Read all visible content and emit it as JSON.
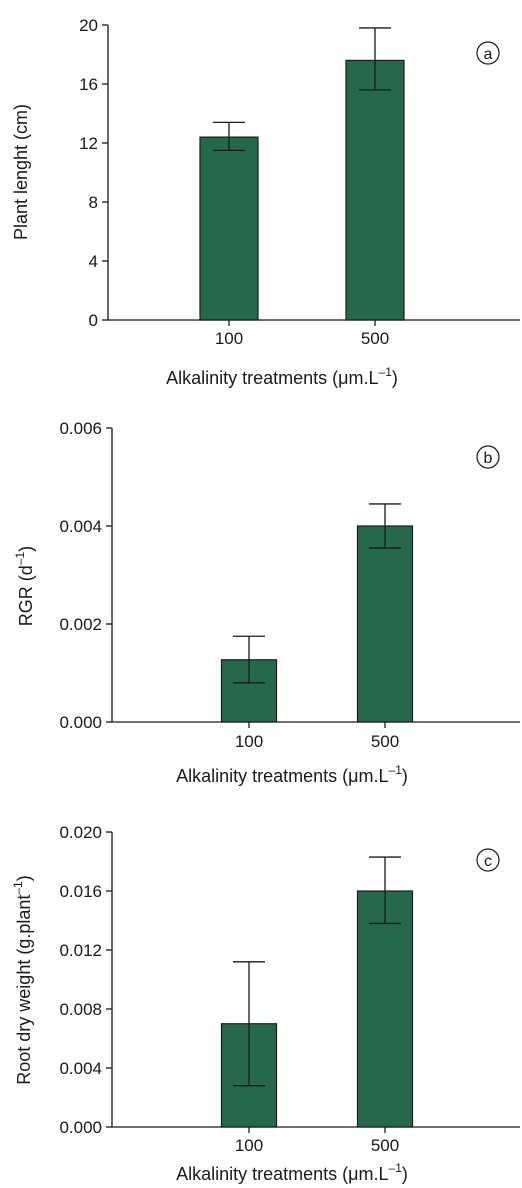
{
  "colors": {
    "bar": "#25694a",
    "ink": "#1a1a1a"
  },
  "chart_data": [
    {
      "type": "bar",
      "panel": "a",
      "categories": [
        "100",
        "500"
      ],
      "values": [
        12.4,
        17.6
      ],
      "errors": [
        {
          "low": 11.5,
          "high": 13.4
        },
        {
          "low": 15.6,
          "high": 19.8
        }
      ],
      "ylim": [
        0,
        20
      ],
      "yticks": [
        "0",
        "4",
        "8",
        "12",
        "16",
        "20"
      ],
      "xlabel": {
        "pre": "Alkalinity treatments (",
        "mu": "μ",
        "mid": "m.L",
        "sup": "–1",
        "post": ")"
      },
      "ylabel": {
        "main": "Plant lenght (cm)",
        "sup": "",
        "post": ""
      }
    },
    {
      "type": "bar",
      "panel": "b",
      "categories": [
        "100",
        "500"
      ],
      "values": [
        0.00127,
        0.004
      ],
      "errors": [
        {
          "low": 0.0008,
          "high": 0.00175
        },
        {
          "low": 0.00355,
          "high": 0.00445
        }
      ],
      "ylim": [
        0,
        0.006
      ],
      "yticks": [
        "0.000",
        "0.002",
        "0.004",
        "0.006"
      ],
      "xlabel": {
        "pre": "Alkalinity treatments (",
        "mu": "μ",
        "mid": "m.L",
        "sup": "–1",
        "post": ")"
      },
      "ylabel": {
        "main": "RGR (d",
        "sup": "–1",
        "post": ")"
      }
    },
    {
      "type": "bar",
      "panel": "c",
      "categories": [
        "100",
        "500"
      ],
      "values": [
        0.007,
        0.016
      ],
      "errors": [
        {
          "low": 0.0028,
          "high": 0.0112
        },
        {
          "low": 0.0138,
          "high": 0.0183
        }
      ],
      "ylim": [
        0,
        0.02
      ],
      "yticks": [
        "0.000",
        "0.004",
        "0.008",
        "0.012",
        "0.016",
        "0.020"
      ],
      "xlabel": {
        "pre": "Alkalinity treatments (",
        "mu": "μ",
        "mid": "m.L",
        "sup": "–1",
        "post": ")"
      },
      "ylabel": {
        "main": "Root dry weight (g.plant",
        "sup": "–1",
        "post": ")"
      }
    }
  ]
}
